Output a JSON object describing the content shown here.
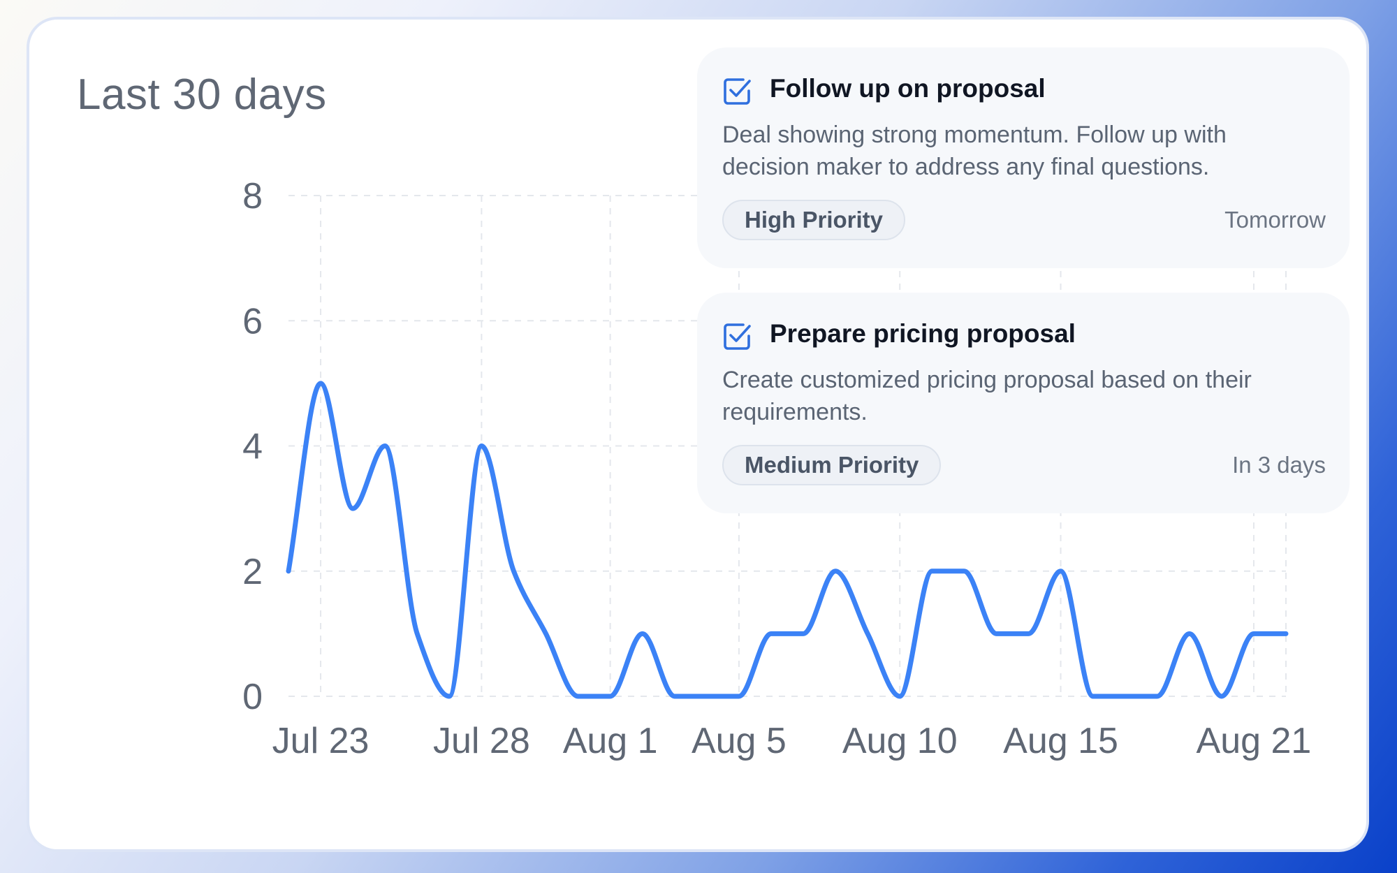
{
  "header": {
    "title": "Last 30 days"
  },
  "chart_data": {
    "type": "line",
    "xlabel": "",
    "ylabel": "",
    "x": [
      "Jul 22",
      "Jul 23",
      "Jul 24",
      "Jul 25",
      "Jul 26",
      "Jul 27",
      "Jul 28",
      "Jul 29",
      "Jul 30",
      "Jul 31",
      "Aug 1",
      "Aug 2",
      "Aug 3",
      "Aug 4",
      "Aug 5",
      "Aug 6",
      "Aug 7",
      "Aug 8",
      "Aug 9",
      "Aug 10",
      "Aug 11",
      "Aug 12",
      "Aug 13",
      "Aug 14",
      "Aug 15",
      "Aug 16",
      "Aug 17",
      "Aug 18",
      "Aug 19",
      "Aug 20",
      "Aug 21",
      "Aug 22"
    ],
    "series": [
      {
        "values": [
          2,
          5,
          3,
          4,
          1,
          0,
          4,
          2,
          1,
          0,
          0,
          1,
          0,
          0,
          0,
          1,
          1,
          2,
          1,
          0,
          2,
          2,
          1,
          1,
          2,
          0,
          0,
          0,
          1,
          0,
          1,
          1
        ]
      }
    ],
    "x_tick_labels": [
      "Jul 23",
      "Jul 28",
      "Aug 1",
      "Aug 5",
      "Aug 10",
      "Aug 15",
      "Aug 21"
    ],
    "y_ticks": [
      0,
      2,
      4,
      6,
      8
    ],
    "ylim": [
      0,
      8
    ],
    "grid": true,
    "line_color": "#3b82f6"
  },
  "tasks": [
    {
      "title": "Follow up on proposal",
      "description": "Deal showing strong momentum. Follow up with decision maker to address any final questions.",
      "priority": "High Priority",
      "due": "Tomorrow",
      "icon": "checkbox-checked-icon"
    },
    {
      "title": "Prepare pricing proposal",
      "description": "Create customized pricing proposal based on their requirements.",
      "priority": "Medium Priority",
      "due": "In 3 days",
      "icon": "checkbox-checked-icon"
    }
  ],
  "colors": {
    "accent": "#3b82f6",
    "check": "#2f6fde"
  }
}
